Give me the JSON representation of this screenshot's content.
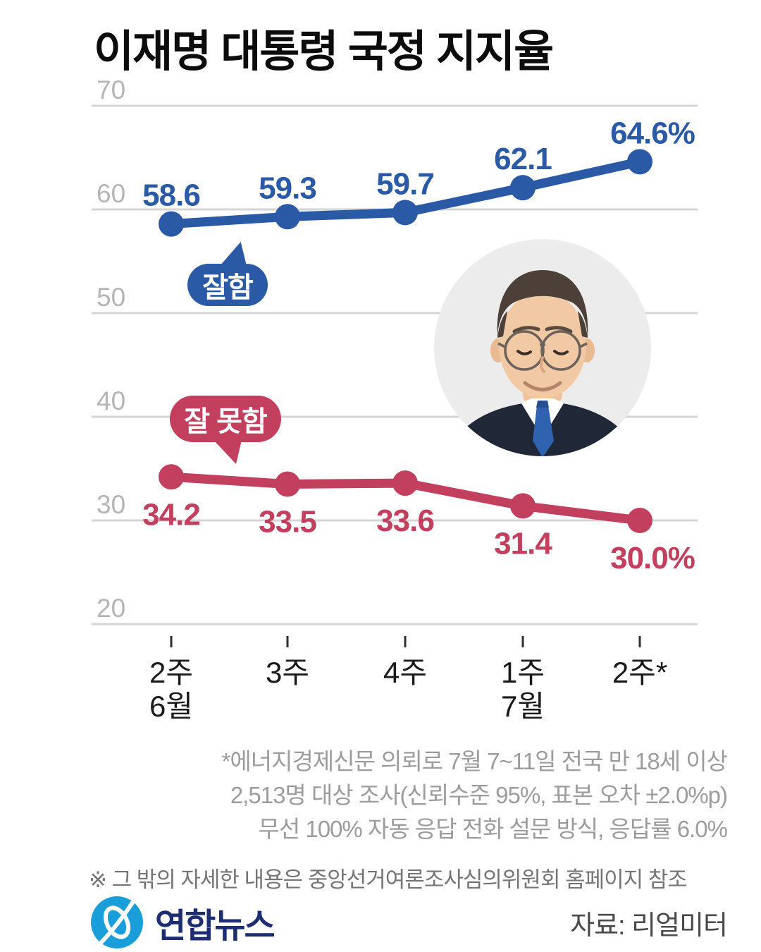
{
  "title": "이재명 대통령 국정 지지율",
  "chart_data": {
    "type": "line",
    "title": "이재명 대통령 국정 지지율",
    "ylim": [
      20,
      70
    ],
    "y_ticks": [
      70,
      60,
      50,
      40,
      30,
      20
    ],
    "grid": true,
    "legend_style": "speech-bubbles-on-plot",
    "x_labels": [
      {
        "line1": "2주",
        "line2": "6월"
      },
      {
        "line1": "3주",
        "line2": ""
      },
      {
        "line1": "4주",
        "line2": ""
      },
      {
        "line1": "1주",
        "line2": "7월"
      },
      {
        "line1": "2주*",
        "line2": ""
      }
    ],
    "series": [
      {
        "name": "잘함",
        "color": "#2a5aa5",
        "values": [
          58.6,
          59.3,
          59.7,
          62.1,
          64.6
        ],
        "value_labels": [
          "58.6",
          "59.3",
          "59.7",
          "62.1",
          "64.6%"
        ],
        "label_position": "above"
      },
      {
        "name": "잘 못함",
        "color": "#c23f5e",
        "values": [
          34.2,
          33.5,
          33.6,
          31.4,
          30.0
        ],
        "value_labels": [
          "34.2",
          "33.5",
          "33.6",
          "31.4",
          "30.0%"
        ],
        "label_position": "below"
      }
    ]
  },
  "footnotes": {
    "line1": "*에너지경제신문 의뢰로 7월 7~11일 전국 만 18세 이상",
    "line2": "2,513명 대상 조사(신뢰수준 95%, 표본 오차 ±2.0%p)",
    "line3": "무선 100% 자동 응답 전화 설문 방식, 응답률 6.0%"
  },
  "note": "※ 그 밖의 자세한 내용은 중앙선거여론조사심의위원회 홈페이지 참조",
  "footer": {
    "logo_text": "연합뉴스",
    "source_label": "자료: 리얼미터"
  },
  "colors": {
    "approve": "#2a5aa5",
    "disapprove": "#c23f5e",
    "grid": "#d5d5d5",
    "axis_text": "#b5b5b5",
    "tick": "#2f2f2f",
    "x_label": "#1a1a1a",
    "logo_blue": "#199ed9",
    "logo_navy": "#1d2d72"
  }
}
